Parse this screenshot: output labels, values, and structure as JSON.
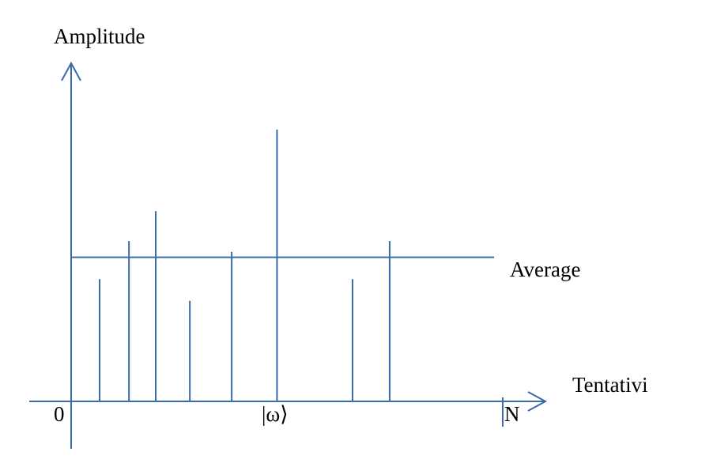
{
  "labels": {
    "y_axis": "Amplitude",
    "x_axis": "Tentativi",
    "average": "Average",
    "origin": "0",
    "marked_state": "|ω⟩",
    "end": "N"
  },
  "colors": {
    "line": "#3b6aa8",
    "text": "#000000"
  },
  "diagram_data": {
    "average_amplitude": 0.53,
    "spikes": [
      {
        "position": 0.066,
        "amplitude": 0.45
      },
      {
        "position": 0.134,
        "amplitude": 0.59
      },
      {
        "position": 0.196,
        "amplitude": 0.7
      },
      {
        "position": 0.275,
        "amplitude": 0.37
      },
      {
        "position": 0.372,
        "amplitude": 0.55
      },
      {
        "position": 0.477,
        "amplitude": 1.0,
        "label": "marked_state"
      },
      {
        "position": 0.652,
        "amplitude": 0.45
      },
      {
        "position": 0.738,
        "amplitude": 0.59
      }
    ]
  }
}
